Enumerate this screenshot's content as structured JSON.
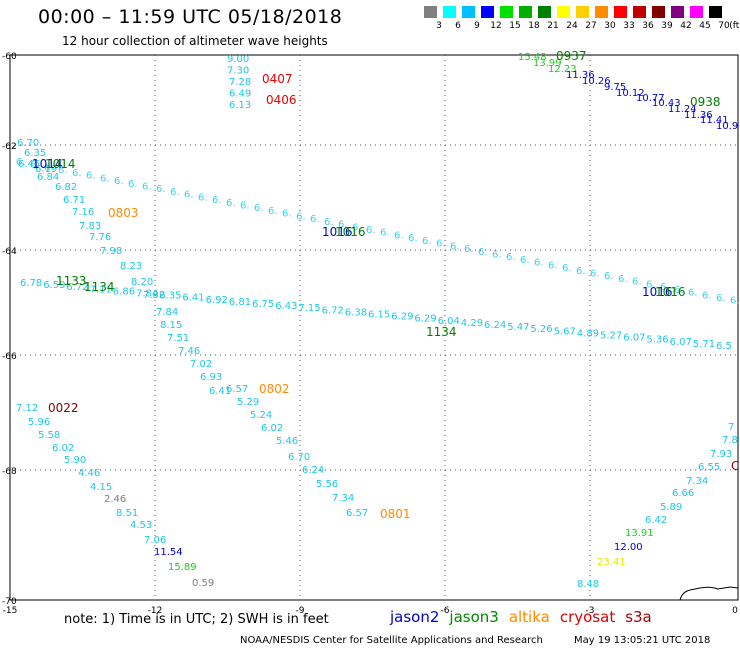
{
  "header": {
    "title": "00:00 – 11:59 UTC 05/18/2018",
    "subtitle": "12 hour collection of altimeter wave heights"
  },
  "color_scale": {
    "unit_label": "(ft)",
    "bins": [
      {
        "label": "3",
        "color": "#808080"
      },
      {
        "label": "6",
        "color": "#00ffff"
      },
      {
        "label": "9",
        "color": "#00bfff"
      },
      {
        "label": "12",
        "color": "#0000ff"
      },
      {
        "label": "15",
        "color": "#00e000"
      },
      {
        "label": "18",
        "color": "#00b000"
      },
      {
        "label": "21",
        "color": "#008000"
      },
      {
        "label": "24",
        "color": "#ffff00"
      },
      {
        "label": "27",
        "color": "#ffd000"
      },
      {
        "label": "30",
        "color": "#ff8c00"
      },
      {
        "label": "33",
        "color": "#ff0000"
      },
      {
        "label": "36",
        "color": "#c00000"
      },
      {
        "label": "39",
        "color": "#800000"
      },
      {
        "label": "42",
        "color": "#800080"
      },
      {
        "label": "45",
        "color": "#ff00ff"
      },
      {
        "label": "70",
        "color": "#000000"
      }
    ]
  },
  "map": {
    "lon_ticks": [
      "-15",
      "-12",
      "-9",
      "-6",
      "-3",
      "0"
    ],
    "lat_ticks": [
      "-60",
      "-62",
      "-64",
      "-66",
      "-68",
      "-70"
    ],
    "colors": {
      "gray": "#808080",
      "cyan": "#1ec8e6",
      "lblue": "#28a0f0",
      "blue": "#0000dd",
      "lgreen": "#22cc22",
      "green": "#008000",
      "yellow": "#e6e600",
      "orange": "#ff8c00",
      "red": "#ee0000",
      "dred": "#8b0000",
      "black": "#000000"
    },
    "passes": [
      {
        "id": "p0407",
        "points": [
          {
            "t": "9.00",
            "c": "cyan"
          },
          {
            "t": "7.30",
            "c": "cyan"
          },
          {
            "t": "7.28",
            "c": "cyan"
          },
          {
            "t": "6.49",
            "c": "cyan"
          },
          {
            "t": "6.13",
            "c": "cyan"
          }
        ]
      },
      {
        "id": "p0937",
        "points": [
          {
            "t": "15.48",
            "c": "lgreen"
          },
          {
            "t": "13.99",
            "c": "lgreen"
          },
          {
            "t": "12.23",
            "c": "lgreen"
          },
          {
            "t": "11.36",
            "c": "blue"
          },
          {
            "t": "10.26",
            "c": "blue"
          },
          {
            "t": "9.75",
            "c": "blue"
          },
          {
            "t": "10.12",
            "c": "blue"
          },
          {
            "t": "10.77",
            "c": "blue"
          },
          {
            "t": "10.43",
            "c": "blue"
          },
          {
            "t": "11.24",
            "c": "blue"
          },
          {
            "t": "11.36",
            "c": "blue"
          },
          {
            "t": "11.41",
            "c": "blue"
          },
          {
            "t": "10.9",
            "c": "blue"
          }
        ]
      },
      {
        "id": "p1016",
        "points": [
          {
            "t": "6.70",
            "c": "cyan"
          },
          {
            "t": "6.35",
            "c": "cyan"
          },
          {
            "t": "6.45",
            "c": "cyan"
          },
          {
            "t": "6.19",
            "c": "cyan"
          },
          {
            "t": "6.84",
            "c": "cyan"
          },
          {
            "t": "6.82",
            "c": "cyan"
          },
          {
            "t": "6.71",
            "c": "cyan"
          },
          {
            "t": "7.16",
            "c": "cyan"
          },
          {
            "t": "7.83",
            "c": "cyan"
          },
          {
            "t": "7.76",
            "c": "cyan"
          },
          {
            "t": "7.98",
            "c": "cyan"
          },
          {
            "t": "8.23",
            "c": "cyan"
          },
          {
            "t": "8.20",
            "c": "cyan"
          },
          {
            "t": "7.82",
            "c": "cyan"
          },
          {
            "t": "7.84",
            "c": "cyan"
          },
          {
            "t": "8.15",
            "c": "cyan"
          },
          {
            "t": "7.51",
            "c": "cyan"
          },
          {
            "t": "7.46",
            "c": "cyan"
          },
          {
            "t": "7.02",
            "c": "cyan"
          },
          {
            "t": "6.93",
            "c": "cyan"
          },
          {
            "t": "6.41",
            "c": "cyan"
          },
          {
            "t": "6.57",
            "c": "cyan"
          },
          {
            "t": "5.29",
            "c": "cyan"
          },
          {
            "t": "5.24",
            "c": "cyan"
          },
          {
            "t": "6.02",
            "c": "cyan"
          },
          {
            "t": "5.46",
            "c": "cyan"
          },
          {
            "t": "6.70",
            "c": "cyan"
          },
          {
            "t": "6.24",
            "c": "cyan"
          },
          {
            "t": "5.56",
            "c": "cyan"
          },
          {
            "t": "7.34",
            "c": "cyan"
          },
          {
            "t": "6.57",
            "c": "cyan"
          }
        ]
      },
      {
        "id": "p1134",
        "points": [
          {
            "t": "6.78",
            "c": "cyan"
          },
          {
            "t": "6.59",
            "c": "cyan"
          },
          {
            "t": "6.72",
            "c": "cyan"
          },
          {
            "t": "7.11",
            "c": "cyan"
          },
          {
            "t": "6.86",
            "c": "cyan"
          },
          {
            "t": "7.84",
            "c": "cyan"
          },
          {
            "t": "6.35",
            "c": "cyan"
          },
          {
            "t": "6.41",
            "c": "cyan"
          },
          {
            "t": "6.92",
            "c": "cyan"
          },
          {
            "t": "6.81",
            "c": "cyan"
          },
          {
            "t": "6.75",
            "c": "cyan"
          },
          {
            "t": "6.43",
            "c": "cyan"
          },
          {
            "t": "7.15",
            "c": "cyan"
          },
          {
            "t": "6.72",
            "c": "cyan"
          },
          {
            "t": "6.38",
            "c": "cyan"
          },
          {
            "t": "6.15",
            "c": "cyan"
          },
          {
            "t": "6.29",
            "c": "cyan"
          },
          {
            "t": "6.29",
            "c": "cyan"
          },
          {
            "t": "6.04",
            "c": "cyan"
          },
          {
            "t": "4.29",
            "c": "cyan"
          },
          {
            "t": "6.24",
            "c": "cyan"
          },
          {
            "t": "5.47",
            "c": "cyan"
          },
          {
            "t": "5.26",
            "c": "cyan"
          },
          {
            "t": "5.67",
            "c": "cyan"
          },
          {
            "t": "4.89",
            "c": "cyan"
          },
          {
            "t": "5.27",
            "c": "cyan"
          },
          {
            "t": "6.07",
            "c": "cyan"
          },
          {
            "t": "5.36",
            "c": "cyan"
          },
          {
            "t": "6.07",
            "c": "cyan"
          },
          {
            "t": "5.71",
            "c": "cyan"
          },
          {
            "t": "6.5",
            "c": "cyan"
          }
        ]
      },
      {
        "id": "p0022",
        "points": [
          {
            "t": "7.12",
            "c": "cyan"
          },
          {
            "t": "5.96",
            "c": "cyan"
          },
          {
            "t": "5.58",
            "c": "cyan"
          },
          {
            "t": "6.02",
            "c": "cyan"
          },
          {
            "t": "5.90",
            "c": "cyan"
          },
          {
            "t": "4.46",
            "c": "cyan"
          },
          {
            "t": "4.15",
            "c": "cyan"
          },
          {
            "t": "2.46",
            "c": "gray"
          },
          {
            "t": "8.51",
            "c": "cyan"
          },
          {
            "t": "4.53",
            "c": "cyan"
          },
          {
            "t": "7.06",
            "c": "cyan"
          },
          {
            "t": "11.54",
            "c": "blue"
          },
          {
            "t": "15.89",
            "c": "lgreen"
          },
          {
            "t": "0.59",
            "c": "gray"
          }
        ]
      },
      {
        "id": "p0938",
        "points": [
          {
            "t": "8.48",
            "c": "cyan"
          },
          {
            "t": "23.41",
            "c": "yellow"
          },
          {
            "t": "12.00",
            "c": "blue"
          },
          {
            "t": "13.91",
            "c": "lgreen"
          },
          {
            "t": "6.42",
            "c": "cyan"
          },
          {
            "t": "5.89",
            "c": "cyan"
          },
          {
            "t": "6.66",
            "c": "cyan"
          },
          {
            "t": "7.34",
            "c": "cyan"
          },
          {
            "t": "6.55",
            "c": "cyan"
          },
          {
            "t": "7.93",
            "c": "cyan"
          },
          {
            "t": "7.8",
            "c": "cyan"
          },
          {
            "t": "7",
            "c": "cyan"
          }
        ]
      }
    ],
    "pass_times": [
      {
        "t": "0407",
        "c": "red"
      },
      {
        "t": "0406",
        "c": "red"
      },
      {
        "t": "0937",
        "c": "green"
      },
      {
        "t": "0938",
        "c": "green"
      },
      {
        "t": "1014",
        "c": "blue"
      },
      {
        "t": "1014",
        "c": "green"
      },
      {
        "t": "0803",
        "c": "orange"
      },
      {
        "t": "1016",
        "c": "blue"
      },
      {
        "t": "1016",
        "c": "green"
      },
      {
        "t": "1016",
        "c": "blue"
      },
      {
        "t": "1016",
        "c": "green"
      },
      {
        "t": "1133",
        "c": "green"
      },
      {
        "t": "1134",
        "c": "green"
      },
      {
        "t": "1134",
        "c": "green"
      },
      {
        "t": "0802",
        "c": "orange"
      },
      {
        "t": "0022",
        "c": "dred"
      },
      {
        "t": "0801",
        "c": "orange"
      },
      {
        "t": "C",
        "c": "dred"
      }
    ]
  },
  "footer": {
    "note": "note: 1) Time is in UTC; 2) SWH is in feet",
    "satellites": [
      {
        "name": "jason2",
        "color": "#0000cc"
      },
      {
        "name": "jason3",
        "color": "#008800"
      },
      {
        "name": "altika",
        "color": "#ff8c00"
      },
      {
        "name": "cryosat",
        "color": "#dd0000"
      },
      {
        "name": "s3a",
        "color": "#aa0000"
      }
    ],
    "credit": "NOAA/NESDIS Center for Satellite Applications and Research",
    "timestamp": "May 19 13:05:21 UTC 2018"
  }
}
